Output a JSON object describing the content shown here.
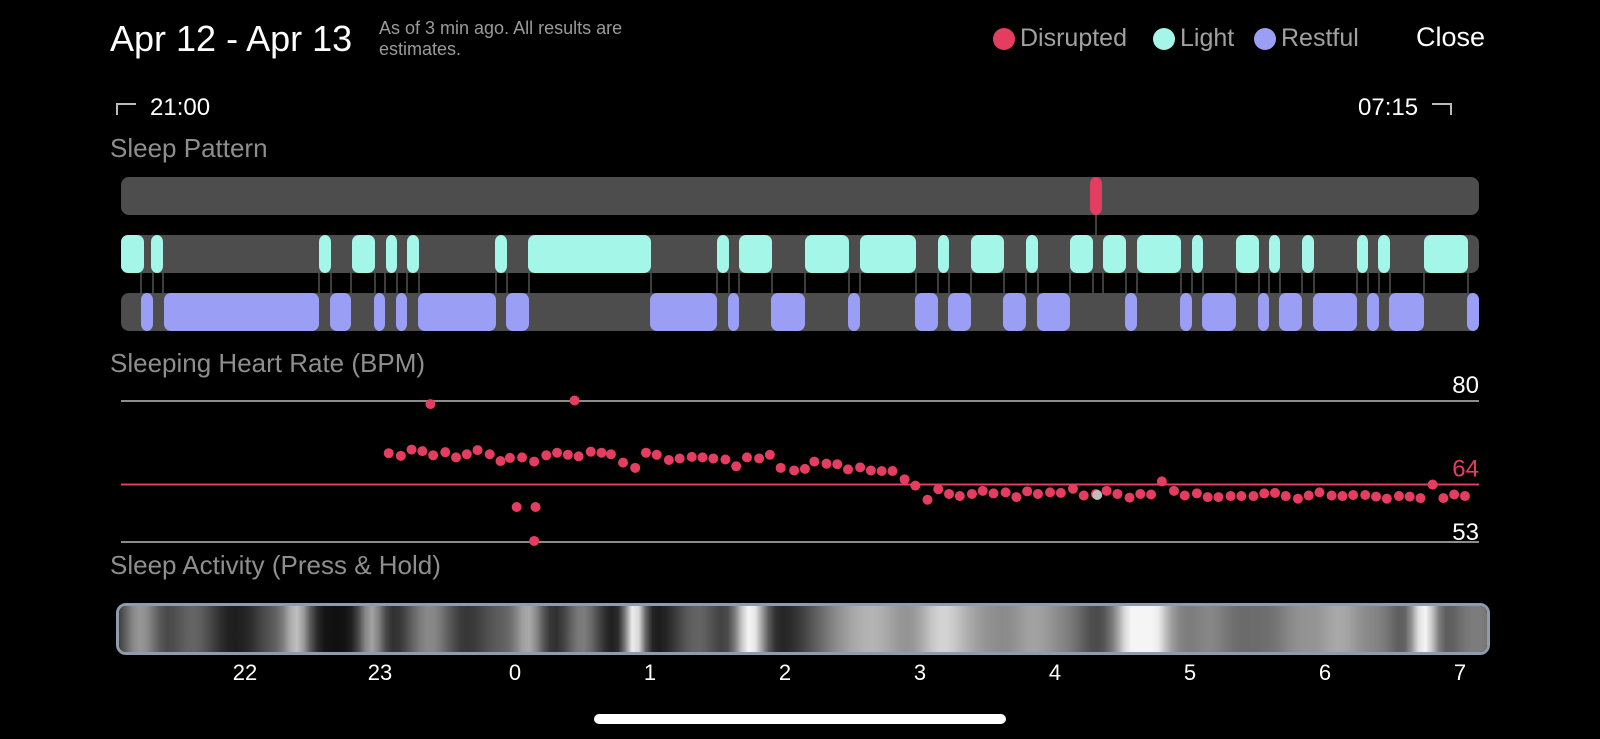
{
  "header": {
    "title": "Apr 12 - Apr 13",
    "note": "As of 3 min ago. All results are estimates.",
    "legend": [
      {
        "label": "Disrupted",
        "color": "#e43d5f"
      },
      {
        "label": "Light",
        "color": "#a4f7e8"
      },
      {
        "label": "Restful",
        "color": "#9b9ef5"
      }
    ],
    "close_label": "Close"
  },
  "range": {
    "start": "21:00",
    "end": "07:15"
  },
  "sleep_pattern": {
    "title": "Sleep Pattern",
    "colors": {
      "track": "#4d4d4d",
      "disrupted": "#e43d5f",
      "light": "#a4f7e8",
      "restful": "#9b9ef5"
    },
    "disrupted": [
      [
        4.26,
        4.33
      ]
    ],
    "light": [
      [
        -1.04,
        -0.95
      ],
      [
        -0.95,
        -0.87
      ],
      [
        -0.45,
        -0.4
      ],
      [
        -0.26,
        -0.14
      ],
      [
        -0.13,
        -0.06
      ],
      [
        0.05,
        0.12
      ],
      [
        -0.24,
        -0.2
      ],
      [
        0.14,
        0.3
      ],
      [
        0.35,
        0.95
      ],
      [
        1.45,
        1.51
      ],
      [
        1.55,
        1.75
      ],
      [
        2.05,
        2.35
      ],
      [
        2.45,
        2.75
      ],
      [
        2.93,
        2.99
      ],
      [
        3.18,
        3.43
      ],
      [
        3.58,
        3.63
      ],
      [
        3.97,
        4.15
      ],
      [
        4.25,
        4.4
      ],
      [
        4.5,
        4.8
      ],
      [
        4.94,
        5.0
      ],
      [
        5.2,
        5.34
      ],
      [
        5.45,
        5.51
      ],
      [
        5.64,
        5.7
      ],
      [
        6.02,
        6.07
      ],
      [
        6.15,
        6.22
      ],
      [
        6.5,
        6.8
      ]
    ],
    "restful": [
      [
        -1.04,
        -0.99
      ]
    ]
  },
  "heart_rate": {
    "title": "Sleeping Heart Rate (BPM)",
    "max_label": "80",
    "avg_label": "64",
    "min_label": "53",
    "colors": {
      "dots": "#e43d5f",
      "avg_line": "#e43d5f",
      "grid": "#8c8c8c",
      "highlight": "#bfbfbf"
    }
  },
  "sleep_activity": {
    "title": "Sleep Activity (Press & Hold)"
  },
  "time_axis": {
    "ticks": [
      "22",
      "23",
      "0",
      "1",
      "2",
      "3",
      "4",
      "5",
      "6",
      "7"
    ]
  },
  "chart_data": {
    "type": "scatter",
    "title": "Sleeping Heart Rate (BPM)",
    "x_unit": "hours relative to midnight",
    "xlim": [
      -1.0,
      7.25
    ],
    "ylim": [
      53,
      80
    ],
    "reference_lines": {
      "max": 80,
      "avg": 64,
      "min": 53
    },
    "series": [
      {
        "x": [
          -0.96,
          -0.87,
          -0.79,
          -0.71,
          -0.63,
          -0.54,
          -0.46,
          -0.38,
          -0.3,
          -0.21,
          -0.13,
          -0.06,
          0.03,
          0.12,
          0.21,
          0.29,
          0.37,
          0.45,
          0.54,
          0.62,
          0.69,
          0.78,
          0.87,
          0.95,
          1.03,
          1.12,
          1.2,
          1.29,
          1.37,
          1.45,
          1.54,
          1.62,
          1.7,
          1.79,
          1.87,
          1.95,
          2.05,
          2.13,
          2.2,
          2.29,
          2.37,
          2.45,
          2.54,
          2.62,
          2.7,
          2.78,
          2.87,
          2.95,
          3.04,
          3.12,
          3.2,
          3.28,
          3.37,
          3.45,
          3.53,
          3.62,
          3.7,
          3.78,
          3.86,
          3.95,
          4.03,
          4.12,
          4.2,
          4.29,
          4.37,
          4.45,
          4.54,
          4.62,
          4.7,
          4.78,
          4.87,
          4.95,
          5.04,
          5.12,
          5.2,
          5.29,
          5.37,
          5.46,
          5.54,
          5.62,
          5.7,
          5.79,
          5.87,
          5.95,
          6.04,
          6.12,
          6.2,
          6.29,
          6.37,
          6.45,
          6.54,
          6.62,
          6.7,
          6.79,
          6.87,
          6.95,
          7.03
        ],
        "y": [
          70.0,
          69.5,
          70.7,
          70.4,
          69.6,
          70.2,
          69.2,
          69.8,
          70.6,
          69.8,
          68.5,
          69.1,
          69.2,
          68.4,
          69.6,
          70.1,
          69.7,
          69.4,
          70.3,
          70.1,
          69.8,
          68.2,
          67.2,
          70.1,
          69.7,
          68.7,
          69.0,
          69.3,
          69.2,
          69.0,
          68.8,
          67.5,
          69.2,
          69.0,
          69.7,
          67.2,
          66.7,
          67.0,
          68.4,
          68.0,
          67.9,
          66.9,
          67.3,
          66.7,
          66.6,
          66.6,
          65.0,
          63.8,
          61.1,
          63.1,
          62.2,
          61.8,
          62.2,
          62.8,
          62.3,
          62.5,
          61.6,
          62.7,
          62.2,
          62.5,
          62.4,
          63.2,
          61.9,
          62.2,
          62.8,
          62.2,
          61.5,
          62.2,
          62.1,
          64.6,
          62.8,
          61.9,
          62.3,
          61.6,
          61.6,
          61.8,
          61.8,
          61.8,
          62.3,
          62.4,
          61.8,
          61.3,
          61.9,
          62.5,
          61.9,
          61.8,
          62.0,
          62.0,
          61.7,
          61.3,
          61.8,
          61.7,
          61.4,
          64.0,
          61.4,
          62.1,
          61.8
        ],
        "highlight": {
          "x": 4.3,
          "y": 62.0
        }
      }
    ]
  }
}
